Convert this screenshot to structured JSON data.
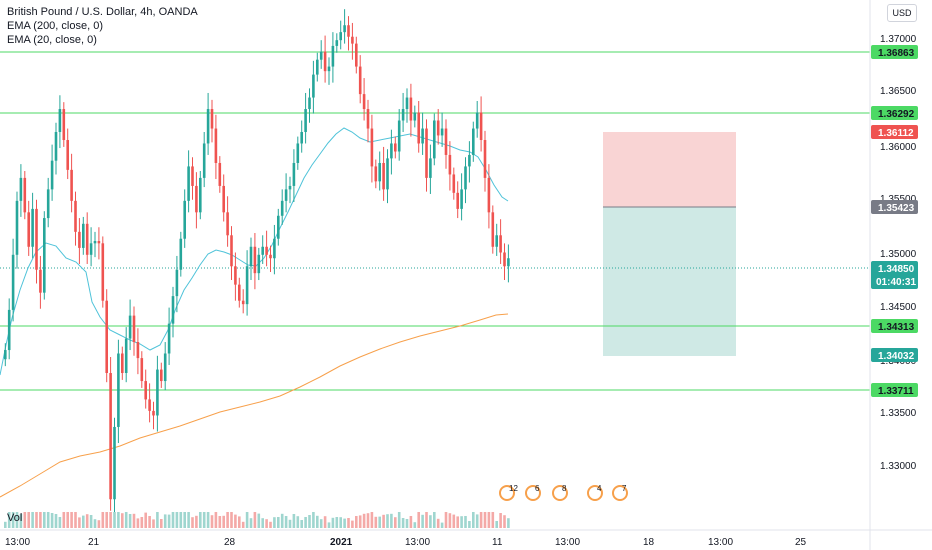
{
  "legend": {
    "symbol": "British Pound / U.S. Dollar, 4h, OANDA",
    "ema200": "EMA (200, close, 0)",
    "ema20": "EMA (20, close, 0)"
  },
  "currency_button": "USD",
  "volume_label": "Vol",
  "price_axis": {
    "ticks": [
      "1.37000",
      "1.36500",
      "1.36000",
      "1.35500",
      "1.35000",
      "1.34500",
      "1.34000",
      "1.33500",
      "1.33000"
    ],
    "tags": [
      {
        "label": "1.36863",
        "kind": "level"
      },
      {
        "label": "1.36292",
        "kind": "level"
      },
      {
        "label": "1.36112",
        "kind": "stop"
      },
      {
        "label": "1.35423",
        "kind": "entry"
      },
      {
        "label": "1.34850",
        "kind": "last"
      },
      {
        "label": "01:40:31",
        "kind": "countdown"
      },
      {
        "label": "1.34313",
        "kind": "level"
      },
      {
        "label": "1.34032",
        "kind": "target"
      },
      {
        "label": "1.33711",
        "kind": "level"
      }
    ]
  },
  "time_axis": {
    "ticks": [
      "13:00",
      "21",
      "28",
      "2021",
      "13:00",
      "11",
      "13:00",
      "18",
      "13:00",
      "25"
    ]
  },
  "event_markers": [
    "12",
    "6",
    "8",
    "4",
    "7"
  ],
  "colors": {
    "up": "#26a69a",
    "down": "#ef5350",
    "level_line": "#4cd964",
    "ema20": "#4fc3d9",
    "ema200": "#f7a04b",
    "stop_zone": "#f9d4d4",
    "target_zone": "#cfe9e5",
    "last_price": "#26a69a"
  },
  "chart_data": {
    "type": "candlestick",
    "title": "British Pound / U.S. Dollar, 4h, OANDA",
    "ylim": [
      1.327,
      1.371
    ],
    "horizontal_levels": [
      1.36863,
      1.36292,
      1.34313,
      1.33711
    ],
    "position_tool": {
      "stop": 1.36112,
      "entry": 1.35423,
      "target": 1.34032
    },
    "last_price": 1.3485,
    "closes": [
      1.3405,
      1.344,
      1.3488,
      1.3535,
      1.3555,
      1.3525,
      1.3495,
      1.3528,
      1.3475,
      1.3455,
      1.352,
      1.3545,
      1.357,
      1.3595,
      1.3615,
      1.3588,
      1.3562,
      1.3535,
      1.3508,
      1.3494,
      1.3515,
      1.3488,
      1.3498,
      1.35,
      1.3498,
      1.3448,
      1.3385,
      1.3275,
      1.3338,
      1.3402,
      1.3385,
      1.3415,
      1.3435,
      1.3412,
      1.3398,
      1.3378,
      1.3362,
      1.3352,
      1.3348,
      1.3388,
      1.3378,
      1.3402,
      1.3428,
      1.3452,
      1.3475,
      1.3502,
      1.3535,
      1.3565,
      1.3548,
      1.3525,
      1.3555,
      1.3585,
      1.3615,
      1.3598,
      1.3568,
      1.3548,
      1.3525,
      1.3505,
      1.3478,
      1.3462,
      1.3448,
      1.3445,
      1.3478,
      1.3495,
      1.3472,
      1.3488,
      1.3495,
      1.3488,
      1.3485,
      1.3502,
      1.3522,
      1.3535,
      1.3545,
      1.3548,
      1.3568,
      1.3585,
      1.3595,
      1.3615,
      1.3625,
      1.3645,
      1.3658,
      1.3665,
      1.3648,
      1.3652,
      1.367,
      1.3675,
      1.3682,
      1.3688,
      1.3678,
      1.3672,
      1.3652,
      1.3628,
      1.3615,
      1.3598,
      1.3565,
      1.3552,
      1.3568,
      1.3545,
      1.3572,
      1.3585,
      1.3578,
      1.3605,
      1.3615,
      1.3625,
      1.3605,
      1.3612,
      1.3585,
      1.3598,
      1.3555,
      1.3572,
      1.3605,
      1.3592,
      1.3598,
      1.3575,
      1.3558,
      1.3542,
      1.3528,
      1.3545,
      1.3565,
      1.3575,
      1.3598,
      1.3612,
      1.3588,
      1.3555,
      1.3525,
      1.3495,
      1.3505,
      1.349,
      1.3478,
      1.3485
    ]
  }
}
